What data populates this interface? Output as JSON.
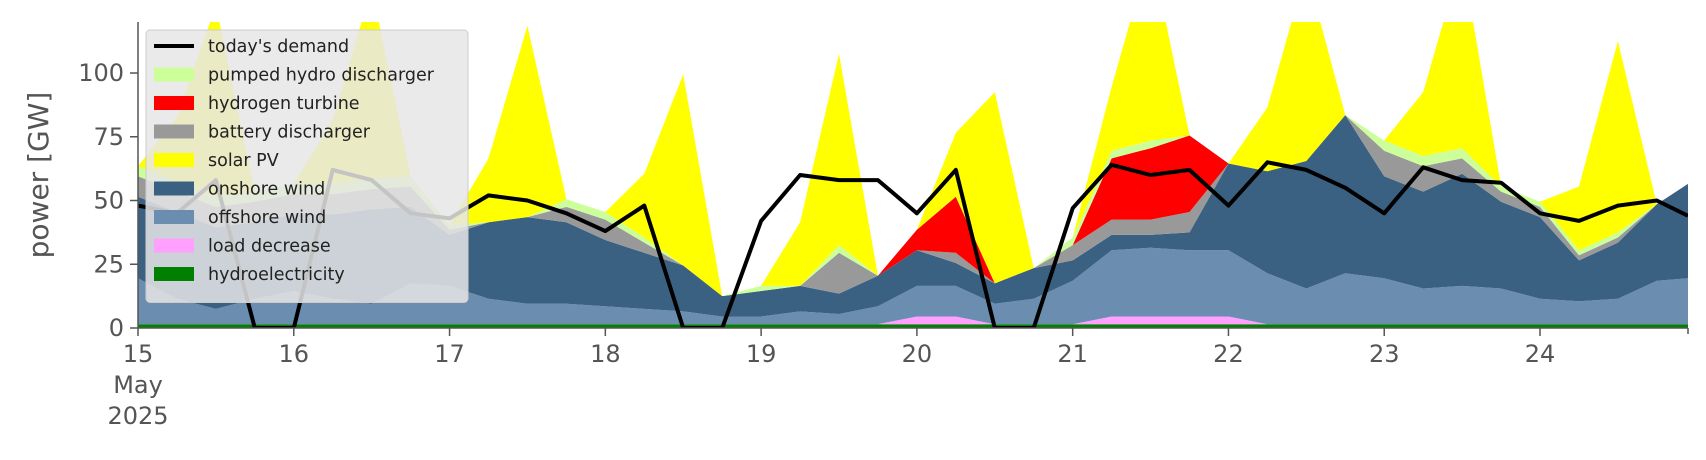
{
  "chart_data": {
    "type": "area",
    "ylabel": "power [GW]",
    "ylim": [
      0,
      120
    ],
    "yticks": [
      0,
      25,
      50,
      75,
      100
    ],
    "xlim": [
      0,
      9.95
    ],
    "x_tick_labels": [
      "15\nMay\n2025",
      "16",
      "17",
      "18",
      "19",
      "20",
      "21",
      "22",
      "23",
      "24"
    ],
    "x_tick_positions_days": [
      0,
      1,
      2,
      3,
      4,
      5,
      6,
      7,
      8,
      9
    ],
    "x_unit": "days since 15 May 2025",
    "grid": false,
    "legend_position": "upper-left",
    "x": [
      0,
      0.25,
      0.5,
      0.75,
      1,
      1.25,
      1.5,
      1.75,
      2,
      2.25,
      2.5,
      2.75,
      3,
      3.25,
      3.5,
      3.75,
      4,
      4.25,
      4.5,
      4.75,
      5,
      5.25,
      5.5,
      5.75,
      6,
      6.25,
      6.5,
      6.75,
      7,
      7.25,
      7.5,
      7.75,
      8,
      8.25,
      8.5,
      8.75,
      9,
      9.25,
      9.5,
      9.75,
      9.95
    ],
    "series": [
      {
        "name": "hydroelectricity",
        "color": "#008000",
        "values": [
          1.5,
          1.5,
          1.5,
          1.5,
          1.5,
          1.5,
          1.5,
          1.5,
          1.5,
          1.5,
          1.5,
          1.5,
          1.5,
          1.5,
          1.5,
          1.5,
          1.5,
          1.5,
          1.5,
          1.5,
          1.5,
          1.5,
          1.5,
          1.5,
          1.5,
          1.5,
          1.5,
          1.5,
          1.5,
          1.5,
          1.5,
          1.5,
          1.5,
          1.5,
          1.5,
          1.5,
          1.5,
          1.5,
          1.5,
          1.5,
          1.5
        ]
      },
      {
        "name": "load decrease",
        "color": "#ffa0ff",
        "values": [
          0,
          0,
          0,
          0,
          0,
          0,
          0,
          0,
          0,
          0,
          0,
          0,
          0,
          0,
          0,
          0,
          0,
          0,
          0,
          0,
          3,
          3,
          0,
          0,
          0,
          3,
          3,
          3,
          3,
          0,
          0,
          0,
          0,
          0,
          0,
          0,
          0,
          0,
          0,
          0,
          0
        ]
      },
      {
        "name": "offshore wind",
        "color": "#6a8db0",
        "values": [
          18,
          10,
          6,
          10,
          13,
          10,
          8,
          16,
          15,
          10,
          8,
          8,
          7,
          6,
          5,
          3,
          3,
          5,
          4,
          7,
          12,
          12,
          8,
          10,
          17,
          26,
          27,
          26,
          26,
          20,
          14,
          20,
          18,
          14,
          15,
          14,
          10,
          9,
          10,
          17,
          18
        ]
      },
      {
        "name": "onshore wind",
        "color": "#3b6182",
        "values": [
          32,
          34,
          32,
          30,
          30,
          33,
          37,
          30,
          20,
          30,
          34,
          32,
          26,
          22,
          18,
          8,
          10,
          10,
          8,
          12,
          14,
          9,
          8,
          12,
          8,
          6,
          5,
          7,
          34,
          40,
          50,
          62,
          40,
          38,
          44,
          34,
          32,
          16,
          22,
          30,
          37
        ]
      },
      {
        "name": "battery discharger",
        "color": "#999999",
        "values": [
          8,
          8,
          8,
          8,
          8,
          8,
          8,
          8,
          2,
          0,
          0,
          6,
          8,
          4,
          0,
          0,
          0,
          0,
          16,
          0,
          0,
          4,
          0,
          0,
          6,
          6,
          6,
          8,
          0,
          0,
          0,
          0,
          10,
          10,
          6,
          4,
          4,
          2,
          2,
          0,
          0
        ]
      },
      {
        "name": "hydrogen turbine",
        "color": "#ff0000",
        "values": [
          0,
          0,
          0,
          0,
          0,
          0,
          0,
          0,
          0,
          0,
          0,
          0,
          0,
          0,
          0,
          0,
          0,
          0,
          0,
          0,
          8,
          22,
          0,
          0,
          0,
          24,
          28,
          30,
          0,
          0,
          0,
          0,
          0,
          0,
          0,
          0,
          0,
          0,
          0,
          0,
          0
        ]
      },
      {
        "name": "pumped hydro discharger",
        "color": "#ccff99",
        "values": [
          4,
          4,
          4,
          4,
          4,
          4,
          4,
          4,
          2,
          0,
          0,
          3,
          3,
          2,
          0,
          0,
          2,
          0,
          3,
          0,
          0,
          0,
          0,
          0,
          3,
          3,
          3,
          0,
          0,
          0,
          0,
          0,
          4,
          4,
          4,
          2,
          2,
          2,
          2,
          0,
          0
        ]
      },
      {
        "name": "solar PV",
        "color": "#ffff00",
        "values": [
          0,
          25,
          75,
          0,
          0,
          25,
          75,
          0,
          0,
          25,
          75,
          0,
          0,
          25,
          75,
          0,
          0,
          25,
          75,
          0,
          0,
          25,
          75,
          0,
          0,
          25,
          75,
          0,
          0,
          25,
          75,
          0,
          0,
          25,
          75,
          0,
          0,
          25,
          75,
          0,
          0
        ]
      }
    ],
    "demand": {
      "name": "today's demand",
      "color": "#000000",
      "values": [
        48,
        45,
        58,
        0,
        0,
        62,
        58,
        45,
        43,
        52,
        50,
        45,
        38,
        48,
        0,
        0,
        42,
        60,
        58,
        58,
        45,
        62,
        0,
        0,
        47,
        64,
        60,
        62,
        48,
        65,
        62,
        55,
        45,
        63,
        58,
        57,
        45,
        42,
        48,
        50,
        44
      ]
    }
  },
  "legend": {
    "items": [
      {
        "label": "today's demand",
        "color": "#000000",
        "kind": "line"
      },
      {
        "label": "pumped hydro discharger",
        "color": "#ccff99",
        "kind": "patch"
      },
      {
        "label": "hydrogen turbine",
        "color": "#ff0000",
        "kind": "patch"
      },
      {
        "label": "battery discharger",
        "color": "#999999",
        "kind": "patch"
      },
      {
        "label": "solar PV",
        "color": "#ffff00",
        "kind": "patch"
      },
      {
        "label": "onshore wind",
        "color": "#3b6182",
        "kind": "patch"
      },
      {
        "label": "offshore wind",
        "color": "#6a8db0",
        "kind": "patch"
      },
      {
        "label": "load decrease",
        "color": "#ffa0ff",
        "kind": "patch"
      },
      {
        "label": "hydroelectricity",
        "color": "#008000",
        "kind": "patch"
      }
    ]
  }
}
